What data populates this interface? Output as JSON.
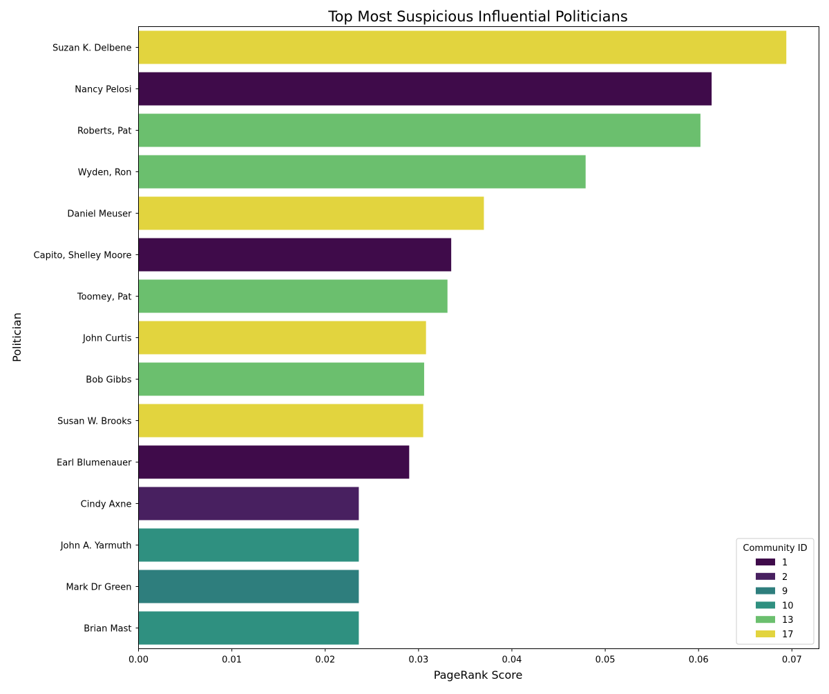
{
  "chart_data": {
    "type": "bar",
    "orientation": "horizontal",
    "title": "Top Most Suspicious Influential Politicians",
    "xlabel": "PageRank Score",
    "ylabel": "Politician",
    "xlim": [
      0,
      0.0729
    ],
    "xticks": [
      0.0,
      0.01,
      0.02,
      0.03,
      0.04,
      0.05,
      0.06,
      0.07
    ],
    "xtick_labels": [
      "0.00",
      "0.01",
      "0.02",
      "0.03",
      "0.04",
      "0.05",
      "0.06",
      "0.07"
    ],
    "grid": false,
    "categories": [
      "Suzan K. Delbene",
      "Nancy Pelosi",
      "Roberts, Pat",
      "Wyden, Ron",
      "Daniel Meuser",
      "Capito, Shelley Moore",
      "Toomey, Pat",
      "John Curtis",
      "Bob Gibbs",
      "Susan W. Brooks",
      "Earl Blumenauer",
      "Cindy Axne",
      "John A. Yarmuth",
      "Mark Dr Green",
      "Brian Mast"
    ],
    "values": [
      0.0694,
      0.0614,
      0.0602,
      0.0479,
      0.037,
      0.0335,
      0.0331,
      0.0308,
      0.0306,
      0.0305,
      0.029,
      0.0236,
      0.0236,
      0.0236,
      0.0236
    ],
    "community": [
      "17",
      "1",
      "13",
      "13",
      "17",
      "1",
      "13",
      "17",
      "13",
      "17",
      "1",
      "2",
      "10",
      "9",
      "10"
    ],
    "legend": {
      "title": "Community ID",
      "placement": "lower-right",
      "entries": [
        {
          "label": "1",
          "color": "#3f0b4a"
        },
        {
          "label": "2",
          "color": "#482060"
        },
        {
          "label": "9",
          "color": "#2e7e7d"
        },
        {
          "label": "10",
          "color": "#2f9080"
        },
        {
          "label": "13",
          "color": "#6bbf6e"
        },
        {
          "label": "17",
          "color": "#e2d43e"
        }
      ]
    }
  }
}
